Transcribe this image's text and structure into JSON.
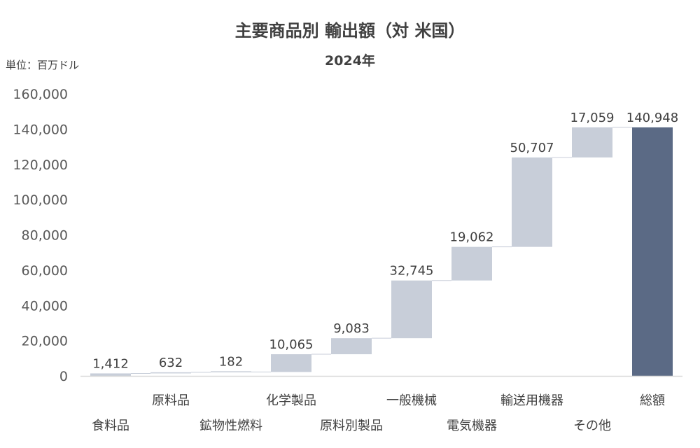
{
  "chart_data": {
    "type": "waterfall",
    "title": "主要商品別 輸出額（対 米国）",
    "subtitle": "2024年",
    "unit_label": "単位：百万ドル",
    "ylim": [
      0,
      160000
    ],
    "yticks": [
      0,
      20000,
      40000,
      60000,
      80000,
      100000,
      120000,
      140000,
      160000
    ],
    "categories": [
      "食料品",
      "原料品",
      "鉱物性燃料",
      "化学製品",
      "原料別製品",
      "一般機械",
      "電気機器",
      "輸送用機器",
      "その他",
      "総額"
    ],
    "values": [
      1412,
      632,
      182,
      10065,
      9083,
      32745,
      19062,
      50707,
      17059,
      140948
    ],
    "data_labels": [
      "1,412",
      "632",
      "182",
      "10,065",
      "9,083",
      "32,745",
      "19,062",
      "50,707",
      "17,059",
      "140,948"
    ],
    "total_index": 9,
    "grid": false,
    "colors": {
      "increment": "#c8ced9",
      "total": "#5b6a85",
      "connector": "#c8ced9",
      "axis": "#d9d9d9"
    }
  }
}
